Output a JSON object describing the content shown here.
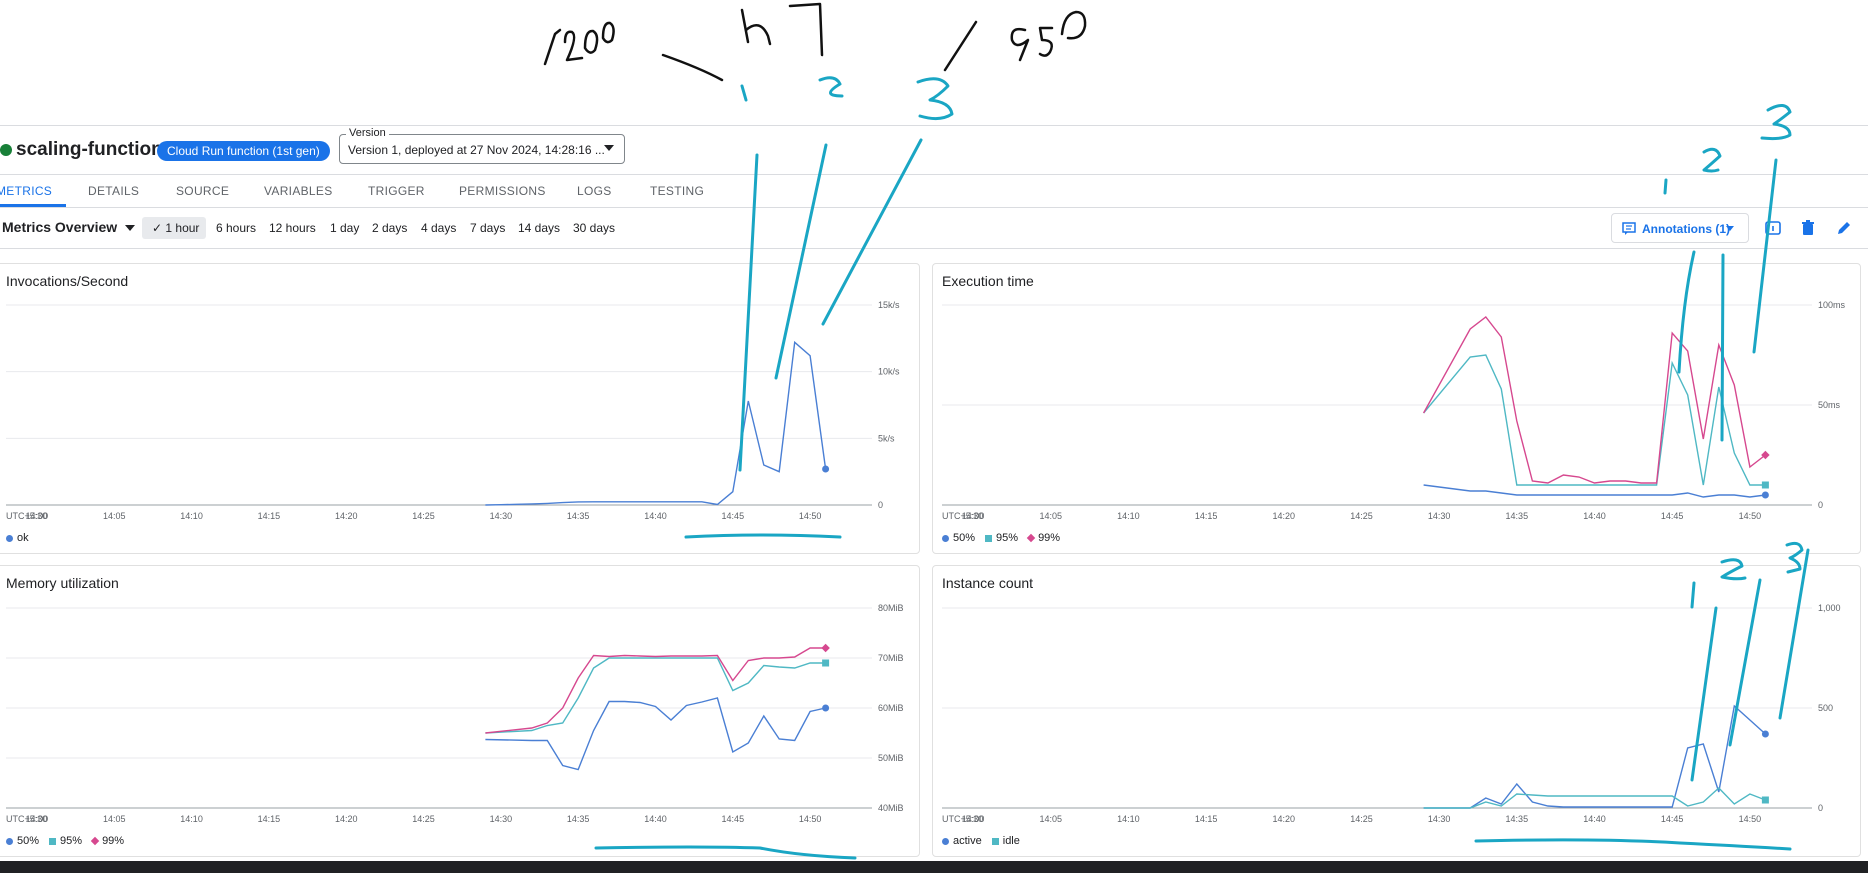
{
  "colors": {
    "accent": "#1a73e8",
    "series_blue": "#4a7fd4",
    "series_teal": "#4fb8c4",
    "series_pink": "#d6488f",
    "ink_black": "#111111",
    "ink_cyan": "#1aa6c4"
  },
  "handwriting": {
    "top_text": [
      "200",
      "n",
      "950"
    ],
    "numbers": [
      "1",
      "2",
      "3"
    ]
  },
  "header": {
    "function_name": "scaling-function-1",
    "badge": "Cloud Run function (1st gen)",
    "version_label": "Version",
    "version_value": "Version 1, deployed at 27 Nov 2024, 14:28:16 ..."
  },
  "tabs": [
    "METRICS",
    "DETAILS",
    "SOURCE",
    "VARIABLES",
    "TRIGGER",
    "PERMISSIONS",
    "LOGS",
    "TESTING"
  ],
  "toolbar": {
    "overview_label": "Metrics Overview",
    "ranges": [
      "1 hour",
      "6 hours",
      "12 hours",
      "1 day",
      "2 days",
      "4 days",
      "7 days",
      "14 days",
      "30 days"
    ],
    "selected_range": "1 hour",
    "annotations_label": "Annotations (1)",
    "icons": [
      "info-icon",
      "delete-icon",
      "edit-icon"
    ]
  },
  "x_axis": {
    "labels": [
      "UTC+5:30",
      "14:00",
      "14:05",
      "14:10",
      "14:15",
      "14:20",
      "14:25",
      "14:30",
      "14:35",
      "14:40",
      "14:45",
      "14:50"
    ],
    "time_range_minutes": [
      -2,
      54
    ]
  },
  "chart_data": [
    {
      "id": "invocations",
      "type": "line",
      "title": "Invocations/Second",
      "ylim": [
        0,
        15000
      ],
      "yticks": [
        {
          "v": 0,
          "label": "0"
        },
        {
          "v": 5000,
          "label": "5k/s"
        },
        {
          "v": 10000,
          "label": "10k/s"
        },
        {
          "v": 15000,
          "label": "15k/s"
        }
      ],
      "x": [
        29,
        30,
        31,
        32,
        33,
        34,
        35,
        36,
        37,
        38,
        39,
        40,
        41,
        42,
        43,
        44,
        45,
        46,
        47,
        48,
        49,
        50,
        51
      ],
      "series": [
        {
          "name": "ok",
          "color": "#4a7fd4",
          "marker": "circle",
          "values": [
            0,
            20,
            50,
            80,
            120,
            180,
            230,
            240,
            240,
            240,
            240,
            240,
            240,
            240,
            240,
            40,
            1000,
            7800,
            3000,
            2500,
            12200,
            11200,
            2700
          ]
        }
      ]
    },
    {
      "id": "execution",
      "type": "line",
      "title": "Execution time",
      "ylim": [
        0,
        100
      ],
      "yticks": [
        {
          "v": 0,
          "label": "0"
        },
        {
          "v": 50,
          "label": "50ms"
        },
        {
          "v": 100,
          "label": "100ms"
        }
      ],
      "x": [
        29,
        32,
        33,
        34,
        35,
        36,
        37,
        38,
        39,
        40,
        41,
        42,
        43,
        44,
        45,
        46,
        47,
        48,
        49,
        50,
        51
      ],
      "series": [
        {
          "name": "50%",
          "color": "#4a7fd4",
          "marker": "circle",
          "values": [
            10,
            7,
            7,
            6,
            5,
            5,
            5,
            5,
            5,
            5,
            5,
            5,
            5,
            5,
            5,
            6,
            4,
            5,
            5,
            4,
            5
          ]
        },
        {
          "name": "95%",
          "color": "#4fb8c4",
          "marker": "square",
          "values": [
            46,
            74,
            75,
            58,
            10,
            10,
            10,
            10,
            10,
            10,
            10,
            10,
            10,
            10,
            71,
            55,
            10,
            59,
            26,
            10,
            10
          ]
        },
        {
          "name": "99%",
          "color": "#d6488f",
          "marker": "diamond",
          "values": [
            46,
            88,
            94,
            84,
            42,
            12,
            11,
            15,
            14,
            11,
            12,
            12,
            11,
            11,
            86,
            77,
            33,
            80,
            60,
            19,
            25
          ]
        }
      ]
    },
    {
      "id": "memory",
      "type": "line",
      "title": "Memory utilization",
      "ylim": [
        40,
        80
      ],
      "yticks": [
        {
          "v": 40,
          "label": "40MiB"
        },
        {
          "v": 50,
          "label": "50MiB"
        },
        {
          "v": 60,
          "label": "60MiB"
        },
        {
          "v": 70,
          "label": "70MiB"
        },
        {
          "v": 80,
          "label": "80MiB"
        }
      ],
      "x": [
        29,
        32,
        33,
        34,
        35,
        36,
        37,
        38,
        39,
        40,
        41,
        42,
        43,
        44,
        45,
        46,
        47,
        48,
        49,
        50,
        51
      ],
      "series": [
        {
          "name": "50%",
          "color": "#4a7fd4",
          "marker": "circle",
          "values": [
            53.7,
            53.5,
            53.5,
            48.5,
            47.7,
            55.5,
            61.3,
            61.3,
            61.1,
            60.3,
            57.6,
            60.5,
            61.2,
            62,
            51.2,
            53,
            58.4,
            53.8,
            53.5,
            59.3,
            60
          ]
        },
        {
          "name": "95%",
          "color": "#4fb8c4",
          "marker": "square",
          "values": [
            55,
            55.5,
            56.5,
            57,
            62,
            68,
            70,
            70,
            70,
            70,
            70,
            70,
            70,
            70,
            63.5,
            65,
            68.5,
            68.2,
            68,
            69,
            69
          ]
        },
        {
          "name": "99%",
          "color": "#d6488f",
          "marker": "diamond",
          "values": [
            55,
            56,
            57,
            60,
            66,
            70.5,
            70.3,
            70.5,
            70.4,
            70.3,
            70.4,
            70.4,
            70.4,
            70.5,
            65.5,
            69.5,
            70,
            70,
            70.2,
            72,
            72
          ]
        }
      ]
    },
    {
      "id": "instances",
      "type": "line",
      "title": "Instance count",
      "ylim": [
        0,
        1000
      ],
      "yticks": [
        {
          "v": 0,
          "label": "0"
        },
        {
          "v": 500,
          "label": "500"
        },
        {
          "v": 1000,
          "label": "1,000"
        }
      ],
      "x": [
        29,
        32,
        33,
        34,
        35,
        36,
        37,
        38,
        39,
        40,
        41,
        42,
        43,
        44,
        45,
        46,
        47,
        48,
        49,
        50,
        51
      ],
      "series": [
        {
          "name": "active",
          "color": "#4a7fd4",
          "marker": "circle",
          "values": [
            0,
            0,
            50,
            20,
            120,
            30,
            10,
            5,
            5,
            5,
            5,
            5,
            5,
            5,
            5,
            300,
            320,
            80,
            510,
            440,
            370
          ]
        },
        {
          "name": "idle",
          "color": "#4fb8c4",
          "marker": "square",
          "values": [
            0,
            0,
            30,
            10,
            70,
            65,
            60,
            60,
            60,
            60,
            60,
            60,
            60,
            60,
            60,
            10,
            30,
            100,
            20,
            70,
            40
          ]
        }
      ]
    }
  ]
}
